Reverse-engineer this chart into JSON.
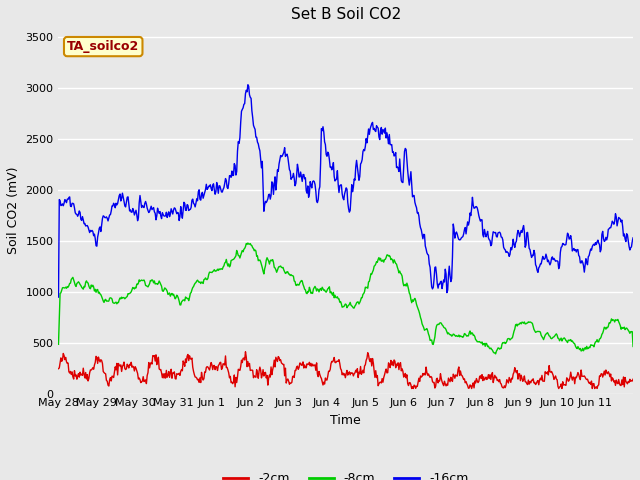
{
  "title": "Set B Soil CO2",
  "xlabel": "Time",
  "ylabel": "Soil CO2 (mV)",
  "ylim": [
    0,
    3600
  ],
  "yticks": [
    0,
    500,
    1000,
    1500,
    2000,
    2500,
    3000,
    3500
  ],
  "fig_bg_color": "#e8e8e8",
  "plot_bg_color": "#e8e8e8",
  "legend_label_neg2": "-2cm",
  "legend_label_neg8": "-8cm",
  "legend_label_neg16": "-16cm",
  "color_neg2": "#dd0000",
  "color_neg8": "#00cc00",
  "color_neg16": "#0000ee",
  "annotation_text": "TA_soilco2",
  "annotation_bg": "#ffffcc",
  "annotation_border": "#cc8800",
  "annotation_color": "#990000",
  "title_fontsize": 11,
  "label_fontsize": 9,
  "tick_fontsize": 8,
  "legend_fontsize": 9,
  "grid_color": "#ffffff",
  "linewidth": 1.0
}
